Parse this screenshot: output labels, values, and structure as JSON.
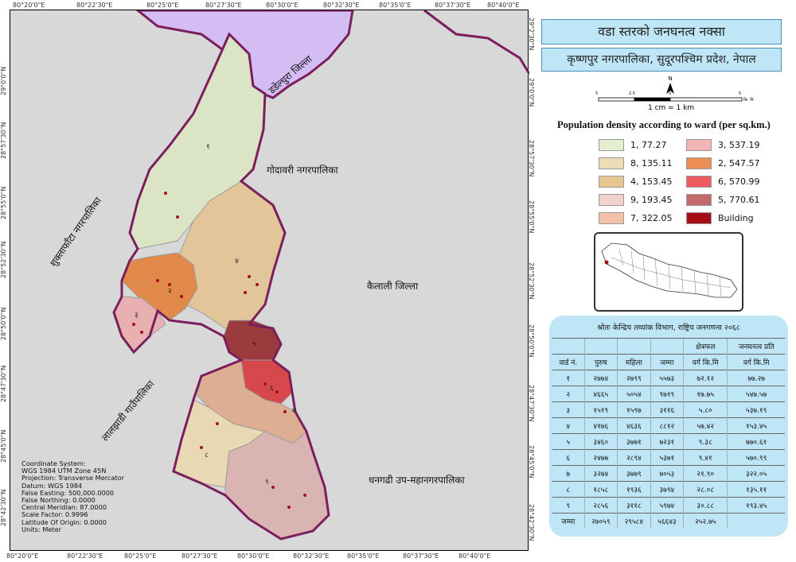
{
  "titles": {
    "main": "वडा स्तरको जनघनत्व नक्सा",
    "sub": "कृष्णपुर नगरपालिका, सुदूरपश्चिम प्रदेश, नेपाल"
  },
  "north_label": "N",
  "scale": {
    "ticks": [
      "5",
      "2.5",
      "0",
      "5",
      "कि. मि"
    ],
    "caption": "1 cm = 1 km"
  },
  "legend": {
    "title": "Population density according to ward (per sq.km.)",
    "items": [
      {
        "label": "1, 77.27",
        "color": "#e3efcf"
      },
      {
        "label": "8, 135.11",
        "color": "#eedcb6"
      },
      {
        "label": "4, 153.45",
        "color": "#e7c690"
      },
      {
        "label": "9, 193.45",
        "color": "#f3d1cc"
      },
      {
        "label": "7, 322.05",
        "color": "#f3c2a6"
      },
      {
        "label": "3, 537.19",
        "color": "#f4b4b6"
      },
      {
        "label": "2, 547.57",
        "color": "#ed8f55"
      },
      {
        "label": "6, 570.99",
        "color": "#ec5a5d"
      },
      {
        "label": "5, 770.61",
        "color": "#c36a6c"
      },
      {
        "label": "Building",
        "color": "#a50f15"
      }
    ]
  },
  "axis_ticks": {
    "top": [
      "80°20'0\"E",
      "80°22'30\"E",
      "80°25'0\"E",
      "80°27'30\"E",
      "80°30'0\"E",
      "80°32'30\"E",
      "80°35'0\"E",
      "80°37'30\"E",
      "80°40'0\"E"
    ],
    "bottom": [
      "80°20'0\"E",
      "80°22'30\"E",
      "80°25'0\"E",
      "80°27'30\"E",
      "80°30'0\"E",
      "80°32'30\"E",
      "80°35'0\"E",
      "80°37'30\"E",
      "80°40'0\"E"
    ],
    "left": [
      "29°0'0\"N",
      "28°57'30\"N",
      "28°55'0\"N",
      "28°52'30\"N",
      "28°50'0\"N",
      "28°47'30\"N",
      "28°45'0\"N",
      "28°42'30\"N"
    ],
    "right": [
      "29°2'30\"N",
      "29°0'0\"N",
      "28°57'30\"N",
      "28°55'0\"N",
      "28°52'30\"N",
      "28°50'0\"N",
      "28°47'30\"N",
      "28°45'0\"N",
      "28°42'30\"N"
    ]
  },
  "map_labels": {
    "dadeldhura": "डडेल्धुरा जिल्ला",
    "godawari": "गोदावरी नगरपालिका",
    "shuklaphanta": "शुक्लाफाँटा नगरपालिका",
    "kailali": "कैलाली जिल्ला",
    "laljhadi": "लालझाडी गाउँपालिका",
    "dhangadhi": "धनगढी उप-महानगरपालिका"
  },
  "ward_numbers": [
    "१",
    "२",
    "३",
    "४",
    "५",
    "६",
    "७",
    "८",
    "९"
  ],
  "map_info": [
    "Coordinate System:",
    "WGS 1984 UTM Zone 45N",
    "Projection: Transverse Mercator",
    "Datum: WGS 1984",
    "False Easting: 500,000.0000",
    "False Northing: 0.0000",
    "Central Meridian: 87.0000",
    "Scale Factor: 0.9996",
    "Latitude Of Origin: 0.0000",
    "Units: Meter"
  ],
  "table": {
    "source": "श्रोतः केन्द्रिय तथ्यांक विभाग, राष्ट्रिय जनगणना २०६८",
    "header_row1": [
      "",
      "",
      "",
      "",
      "क्षेत्रफल",
      "जनघनत्व प्रति"
    ],
    "header_row2": [
      "वार्ड नं.",
      "पुरुष",
      "महिला",
      "जम्मा",
      "वर्ग कि.मि",
      "वर्ग कि.मि"
    ],
    "rows": [
      [
        "१",
        "२७७४",
        "२७९९",
        "५५७३",
        "७२.१२",
        "७७.२७"
      ],
      [
        "२",
        "४६६५",
        "५०५४",
        "९७१९",
        "१७.७५",
        "५४७.५७"
      ],
      [
        "३",
        "१५१९",
        "१५९७",
        "३११६",
        "५.८०",
        "५३७.१९"
      ],
      [
        "४",
        "४१७६",
        "४६३६",
        "८८१२",
        "५७.४२",
        "१५३.४५"
      ],
      [
        "५",
        "३४६०",
        "३७७१",
        "७२३१",
        "९.३८",
        "७७०.६१"
      ],
      [
        "६",
        "२४७७",
        "२८९४",
        "५३७१",
        "९.४१",
        "५७०.९९"
      ],
      [
        "७",
        "३२७४",
        "३७७९",
        "७०५३",
        "२१.९०",
        "३२२.०५"
      ],
      [
        "८",
        "१८५८",
        "१९३६",
        "३७९४",
        "२८.०८",
        "१३५.११"
      ],
      [
        "९",
        "२८५६",
        "३११८",
        "५९७४",
        "३०.८८",
        "१९३.४५"
      ],
      [
        "जम्मा",
        "२७०५९",
        "२९५८४",
        "५६६४३",
        "२५२.७५",
        ""
      ]
    ]
  }
}
